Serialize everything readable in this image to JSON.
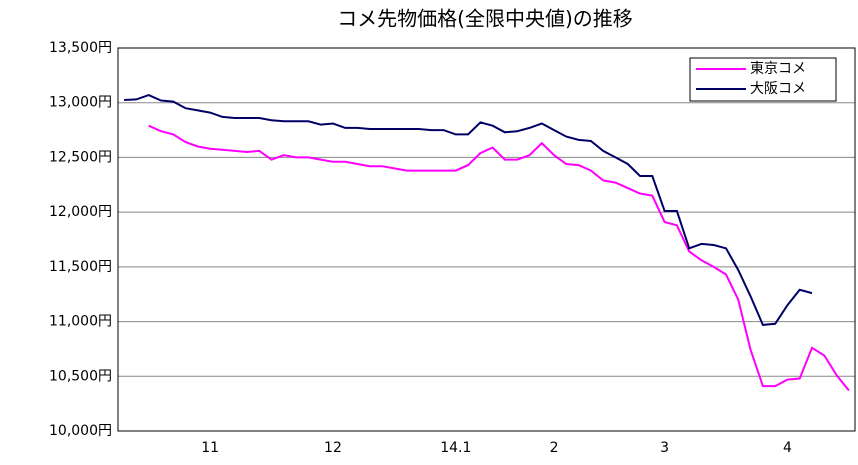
{
  "chart_data": {
    "type": "line",
    "title": "コメ先物価格(全限中央値)の推移",
    "categories": [
      null,
      null,
      null,
      null,
      null,
      null,
      null,
      "11",
      null,
      null,
      null,
      null,
      null,
      null,
      null,
      null,
      null,
      "12",
      null,
      null,
      null,
      null,
      null,
      null,
      null,
      null,
      null,
      "14.1",
      null,
      null,
      null,
      null,
      null,
      null,
      null,
      "2",
      null,
      null,
      null,
      null,
      null,
      null,
      null,
      null,
      "3",
      null,
      null,
      null,
      null,
      null,
      null,
      null,
      null,
      null,
      "4",
      null,
      null,
      null,
      null,
      null
    ],
    "series": [
      {
        "name": "東京コメ",
        "color": "#ff00ff",
        "values": [
          null,
          null,
          12790,
          12740,
          12710,
          12640,
          12600,
          12580,
          12570,
          12560,
          12550,
          12560,
          12480,
          12520,
          12500,
          12500,
          12480,
          12460,
          12460,
          12440,
          12420,
          12420,
          12400,
          12380,
          12380,
          12380,
          12380,
          12380,
          12430,
          12540,
          12590,
          12480,
          12480,
          12520,
          12630,
          12520,
          12440,
          12430,
          12380,
          12290,
          12270,
          12220,
          12170,
          12150,
          11910,
          11880,
          11640,
          11560,
          11500,
          11430,
          11200,
          10740,
          10410,
          10410,
          10470,
          10480,
          10760,
          10690,
          10510,
          10370
        ]
      },
      {
        "name": "大阪コメ",
        "color": "#000066",
        "values": [
          13025,
          13030,
          13070,
          13020,
          13010,
          12950,
          12930,
          12910,
          12870,
          12860,
          12860,
          12860,
          12840,
          12830,
          12830,
          12830,
          12800,
          12810,
          12770,
          12770,
          12760,
          12760,
          12760,
          12760,
          12760,
          12750,
          12750,
          12710,
          12710,
          12820,
          12790,
          12730,
          12740,
          12770,
          12810,
          12750,
          12690,
          12660,
          12650,
          12560,
          12500,
          12440,
          12330,
          12330,
          12010,
          12010,
          11670,
          11710,
          11700,
          11670,
          11470,
          11230,
          10970,
          10980,
          11150,
          11290,
          11260,
          null,
          null,
          null
        ]
      }
    ],
    "ylim": [
      10000,
      13500
    ],
    "yticks": [
      {
        "value": 10000,
        "label": "10,000円"
      },
      {
        "value": 10500,
        "label": "10,500円"
      },
      {
        "value": 11000,
        "label": "11,000円"
      },
      {
        "value": 11500,
        "label": "11,500円"
      },
      {
        "value": 12000,
        "label": "12,000円"
      },
      {
        "value": 12500,
        "label": "12,500円"
      },
      {
        "value": 13000,
        "label": "13,000円"
      },
      {
        "value": 13500,
        "label": "13,500円"
      }
    ],
    "grid": true,
    "legend": "top-right"
  }
}
